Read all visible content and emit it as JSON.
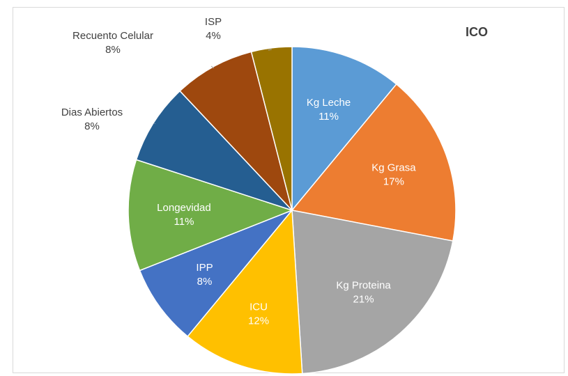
{
  "chart_data": {
    "type": "pie",
    "title": "ICO",
    "slices": [
      {
        "label": "Kg Leche",
        "value": 11,
        "pct_label": "11%",
        "color": "#5b9bd5",
        "text_color": "#ffffff"
      },
      {
        "label": "Kg Grasa",
        "value": 17,
        "pct_label": "17%",
        "color": "#ed7d31",
        "text_color": "#ffffff"
      },
      {
        "label": "Kg Proteina",
        "value": 21,
        "pct_label": "21%",
        "color": "#a5a5a5",
        "text_color": "#ffffff"
      },
      {
        "label": "ICU",
        "value": 12,
        "pct_label": "12%",
        "color": "#ffc000",
        "text_color": "#ffffff"
      },
      {
        "label": "IPP",
        "value": 8,
        "pct_label": "8%",
        "color": "#4472c4",
        "text_color": "#ffffff"
      },
      {
        "label": "Longevidad",
        "value": 11,
        "pct_label": "11%",
        "color": "#70ad47",
        "text_color": "#ffffff"
      },
      {
        "label": "Dias Abiertos",
        "value": 8,
        "pct_label": "8%",
        "color": "#255e91",
        "text_color": "#404040"
      },
      {
        "label": "Recuento Celular",
        "value": 8,
        "pct_label": "8%",
        "color": "#9e480e",
        "text_color": "#404040"
      },
      {
        "label": "ISP",
        "value": 4,
        "pct_label": "4%",
        "color": "#997300",
        "text_color": "#404040"
      }
    ],
    "legend": "none",
    "start_angle_deg": 0,
    "direction": "clockwise"
  }
}
